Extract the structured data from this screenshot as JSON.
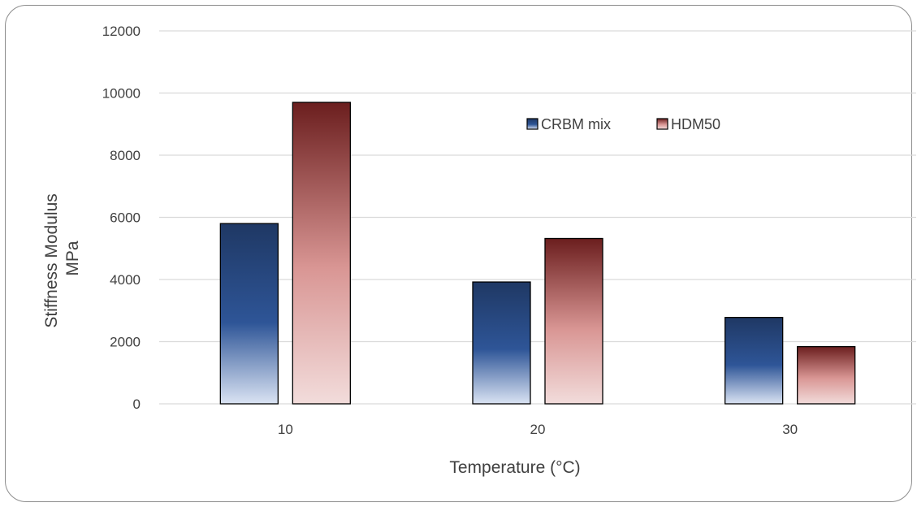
{
  "chart_data": {
    "type": "bar",
    "title": "",
    "xlabel": "Temperature (°C)",
    "ylabel_lines": [
      "Stiffness Modulus",
      "MPa"
    ],
    "categories": [
      "10",
      "20",
      "30"
    ],
    "series": [
      {
        "name": "CRBM mix",
        "values": [
          5800,
          3920,
          2780
        ],
        "color_top": "#1f3864",
        "color_mid": "#2e5597",
        "color_bottom": "#dae3f3"
      },
      {
        "name": "HDM50",
        "values": [
          9700,
          5320,
          1840
        ],
        "color_top": "#6b1e1e",
        "color_mid": "#d99694",
        "color_bottom": "#f2dcdb"
      }
    ],
    "ylim": [
      0,
      12000
    ],
    "yticks": [
      0,
      2000,
      4000,
      6000,
      8000,
      10000,
      12000
    ],
    "grid": true,
    "legend_position": "top-right-inside",
    "bar_border_color": "#000000",
    "gridline_color": "#d9d9d9"
  }
}
